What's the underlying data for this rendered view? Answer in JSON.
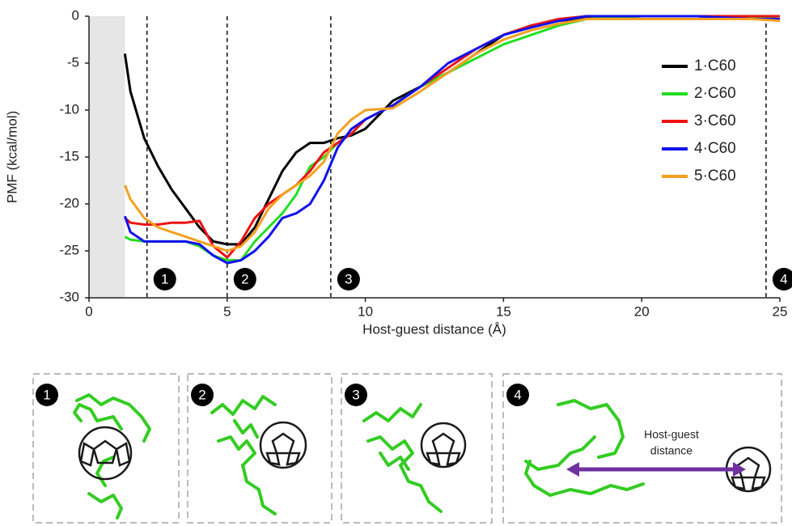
{
  "chart_data": {
    "type": "line",
    "ylabel": "PMF (kcal/mol)",
    "xlabel": "Host-guest distance (Å)",
    "xlim": [
      0,
      25
    ],
    "xticks": [
      0,
      5,
      10,
      15,
      20,
      25
    ],
    "ylim": [
      -30,
      0
    ],
    "yticks": [
      -30,
      -25,
      -20,
      -15,
      -10,
      -5,
      0
    ],
    "grid": false,
    "legend": "upper right",
    "shaded_region": [
      0,
      1.3
    ],
    "markers": [
      {
        "x": 2.1,
        "label": "1"
      },
      {
        "x": 5.0,
        "label": "2"
      },
      {
        "x": 8.75,
        "label": "3"
      },
      {
        "x": 24.5,
        "label": "4"
      }
    ],
    "x": [
      1.3,
      1.5,
      2,
      2.5,
      3,
      3.5,
      4,
      4.5,
      5,
      5.5,
      6,
      6.5,
      7,
      7.5,
      8,
      8.5,
      9,
      9.5,
      10,
      11,
      12,
      13,
      14,
      15,
      16,
      17,
      18,
      20,
      22,
      24,
      25
    ],
    "series": [
      {
        "name": "1·C60",
        "color": "#000000",
        "values": [
          -4,
          -8,
          -13,
          -16,
          -18.5,
          -20.5,
          -22.5,
          -24,
          -24.3,
          -24.3,
          -22.5,
          -19.5,
          -16.5,
          -14.5,
          -13.5,
          -13.5,
          -13,
          -12.7,
          -12,
          -9,
          -7.5,
          -6,
          -4,
          -2,
          -1,
          -0.5,
          -0.2,
          0,
          0,
          -0.2,
          -0.3
        ]
      },
      {
        "name": "2·C60",
        "color": "#22dd22",
        "values": [
          -23.5,
          -23.8,
          -24,
          -24,
          -24,
          -24,
          -24.5,
          -25.5,
          -26,
          -26,
          -24,
          -22.5,
          -21,
          -19,
          -16,
          -15,
          -13.5,
          -12.5,
          -11,
          -9.5,
          -7.5,
          -6,
          -4.5,
          -3,
          -2,
          -1,
          -0.3,
          0,
          0,
          -0.2,
          -0.3
        ]
      },
      {
        "name": "3·C60",
        "color": "#ee1111",
        "values": [
          -21.5,
          -22,
          -22.2,
          -22.2,
          -22,
          -22,
          -21.8,
          -24.5,
          -25.7,
          -24,
          -21.5,
          -20,
          -19,
          -18,
          -16.5,
          -14.5,
          -13.5,
          -12.5,
          -11,
          -9.5,
          -7.5,
          -5.5,
          -3.5,
          -2,
          -1,
          -0.3,
          0,
          0,
          0,
          0,
          0
        ]
      },
      {
        "name": "4·C60",
        "color": "#1111ee",
        "values": [
          -21.3,
          -23,
          -24,
          -24,
          -24,
          -24,
          -24.3,
          -25.5,
          -26.3,
          -26,
          -25,
          -23.5,
          -21.5,
          -21,
          -20,
          -17.5,
          -14,
          -12,
          -11,
          -9.5,
          -7.5,
          -5,
          -3.5,
          -2,
          -1.2,
          -0.5,
          0,
          0,
          0,
          -0.3,
          -0.3
        ]
      },
      {
        "name": "5·C60",
        "color": "#f5a020",
        "values": [
          -18,
          -19.5,
          -21.5,
          -22.5,
          -23,
          -23.5,
          -24,
          -24.5,
          -25,
          -24.5,
          -23,
          -20.5,
          -19,
          -18,
          -17,
          -15.5,
          -12.5,
          -11,
          -10,
          -9.8,
          -8,
          -6,
          -4,
          -2.5,
          -1.5,
          -0.8,
          -0.3,
          -0.3,
          -0.3,
          -0.3,
          -0.5
        ]
      }
    ]
  },
  "panels": [
    {
      "label": "1"
    },
    {
      "label": "2"
    },
    {
      "label": "3"
    },
    {
      "label": "4",
      "annotation_line1": "Host-guest",
      "annotation_line2": "distance"
    }
  ]
}
